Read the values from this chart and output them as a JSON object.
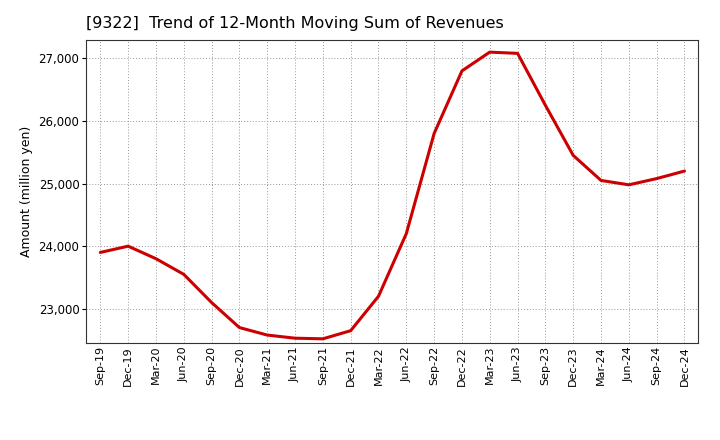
{
  "title": "[9322]  Trend of 12-Month Moving Sum of Revenues",
  "ylabel": "Amount (million yen)",
  "line_color": "#cc0000",
  "background_color": "#ffffff",
  "grid_color": "#999999",
  "x_labels": [
    "Sep-19",
    "Dec-19",
    "Mar-20",
    "Jun-20",
    "Sep-20",
    "Dec-20",
    "Mar-21",
    "Jun-21",
    "Sep-21",
    "Dec-21",
    "Mar-22",
    "Jun-22",
    "Sep-22",
    "Dec-22",
    "Mar-23",
    "Jun-23",
    "Sep-23",
    "Dec-23",
    "Mar-24",
    "Jun-24",
    "Sep-24",
    "Dec-24"
  ],
  "y_values": [
    23900,
    24000,
    23800,
    23550,
    23100,
    22700,
    22580,
    22530,
    22520,
    22650,
    23200,
    24200,
    25800,
    26800,
    27100,
    27080,
    26250,
    25450,
    25050,
    24980,
    25080,
    25200
  ],
  "ylim_min": 22450,
  "ylim_max": 27300,
  "yticks": [
    23000,
    24000,
    25000,
    26000,
    27000
  ]
}
